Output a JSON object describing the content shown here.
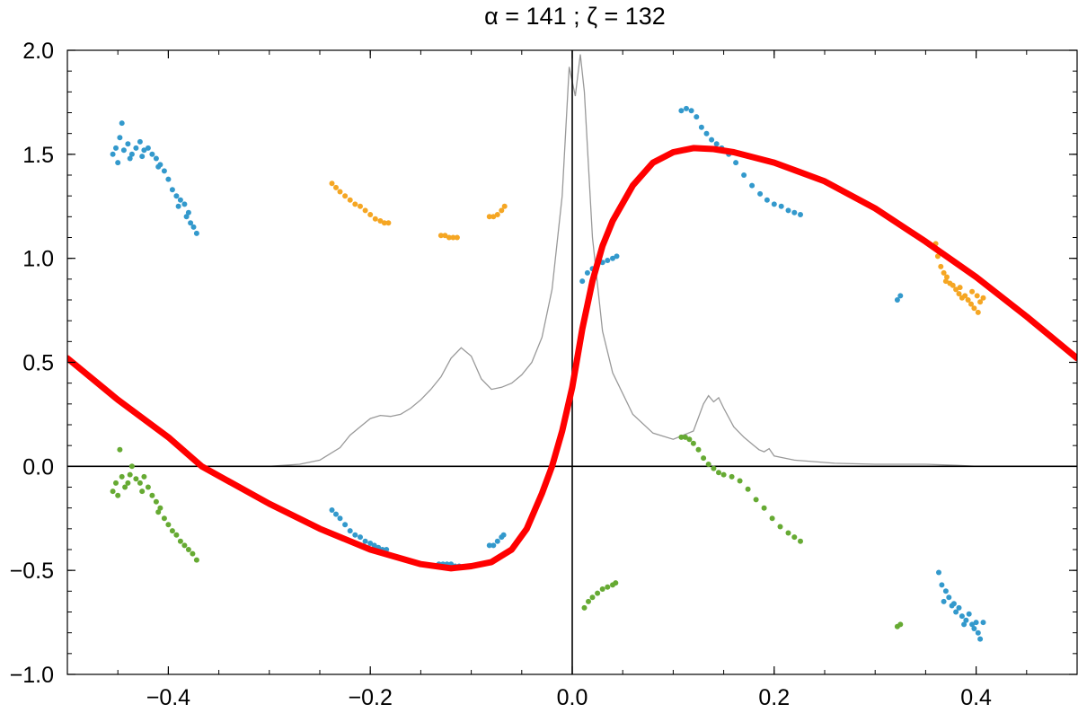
{
  "title": "α = 141 ; ζ = 132",
  "colors": {
    "model": "#ff0000",
    "profile": "#999999",
    "blue": "#3399cc",
    "orange": "#f5a623",
    "green": "#66aa33",
    "axes": "#000000"
  },
  "chart_data": {
    "type": "scatter",
    "title": "α = 141 ; ζ = 132",
    "xlabel": "",
    "ylabel": "",
    "xlim": [
      -0.5,
      0.5
    ],
    "ylim": [
      -1.0,
      2.0
    ],
    "grid": false,
    "legend": "none",
    "x_ticks": [
      -0.4,
      -0.2,
      0.0,
      0.2,
      0.4
    ],
    "x_tick_labels": [
      "−0.4",
      "−0.2",
      "0.0",
      "0.2",
      "0.4"
    ],
    "y_ticks": [
      -1.0,
      -0.5,
      0.0,
      0.5,
      1.0,
      1.5,
      2.0
    ],
    "y_tick_labels": [
      "−1.0",
      "−0.5",
      "0.0",
      "0.5",
      "1.0",
      "1.5",
      "2.0"
    ],
    "reference_lines": {
      "x": 0.0,
      "y": 0.0
    },
    "model_curve": {
      "color": "#ff0000",
      "points": [
        [
          -0.5,
          0.52
        ],
        [
          -0.45,
          0.32
        ],
        [
          -0.4,
          0.14
        ],
        [
          -0.367,
          0.0
        ],
        [
          -0.3,
          -0.18
        ],
        [
          -0.25,
          -0.3
        ],
        [
          -0.2,
          -0.4
        ],
        [
          -0.15,
          -0.47
        ],
        [
          -0.12,
          -0.49
        ],
        [
          -0.1,
          -0.48
        ],
        [
          -0.08,
          -0.46
        ],
        [
          -0.06,
          -0.4
        ],
        [
          -0.045,
          -0.3
        ],
        [
          -0.03,
          -0.13
        ],
        [
          -0.02,
          0.0
        ],
        [
          -0.01,
          0.17
        ],
        [
          0.0,
          0.38
        ],
        [
          0.005,
          0.52
        ],
        [
          0.01,
          0.66
        ],
        [
          0.02,
          0.89
        ],
        [
          0.03,
          1.06
        ],
        [
          0.04,
          1.18
        ],
        [
          0.06,
          1.35
        ],
        [
          0.08,
          1.46
        ],
        [
          0.1,
          1.51
        ],
        [
          0.12,
          1.53
        ],
        [
          0.14,
          1.525
        ],
        [
          0.16,
          1.51
        ],
        [
          0.2,
          1.46
        ],
        [
          0.25,
          1.37
        ],
        [
          0.3,
          1.24
        ],
        [
          0.35,
          1.08
        ],
        [
          0.4,
          0.91
        ],
        [
          0.45,
          0.72
        ],
        [
          0.5,
          0.52
        ]
      ]
    },
    "profile_curve": {
      "color": "#999999",
      "points": [
        [
          -0.5,
          0.0
        ],
        [
          -0.4,
          0.0
        ],
        [
          -0.3,
          0.0
        ],
        [
          -0.27,
          0.01
        ],
        [
          -0.25,
          0.03
        ],
        [
          -0.23,
          0.09
        ],
        [
          -0.22,
          0.15
        ],
        [
          -0.21,
          0.19
        ],
        [
          -0.2,
          0.23
        ],
        [
          -0.19,
          0.245
        ],
        [
          -0.18,
          0.24
        ],
        [
          -0.17,
          0.25
        ],
        [
          -0.16,
          0.28
        ],
        [
          -0.15,
          0.32
        ],
        [
          -0.14,
          0.37
        ],
        [
          -0.13,
          0.43
        ],
        [
          -0.12,
          0.52
        ],
        [
          -0.11,
          0.57
        ],
        [
          -0.1,
          0.53
        ],
        [
          -0.09,
          0.42
        ],
        [
          -0.08,
          0.37
        ],
        [
          -0.07,
          0.38
        ],
        [
          -0.06,
          0.4
        ],
        [
          -0.05,
          0.44
        ],
        [
          -0.04,
          0.5
        ],
        [
          -0.03,
          0.62
        ],
        [
          -0.02,
          0.85
        ],
        [
          -0.01,
          1.3
        ],
        [
          -0.003,
          1.92
        ],
        [
          0.003,
          1.78
        ],
        [
          0.008,
          1.98
        ],
        [
          0.012,
          1.8
        ],
        [
          0.02,
          1.1
        ],
        [
          0.03,
          0.65
        ],
        [
          0.04,
          0.45
        ],
        [
          0.06,
          0.25
        ],
        [
          0.08,
          0.16
        ],
        [
          0.1,
          0.13
        ],
        [
          0.12,
          0.17
        ],
        [
          0.13,
          0.3
        ],
        [
          0.135,
          0.34
        ],
        [
          0.14,
          0.31
        ],
        [
          0.145,
          0.33
        ],
        [
          0.15,
          0.28
        ],
        [
          0.16,
          0.19
        ],
        [
          0.17,
          0.14
        ],
        [
          0.18,
          0.1
        ],
        [
          0.185,
          0.08
        ],
        [
          0.19,
          0.07
        ],
        [
          0.195,
          0.085
        ],
        [
          0.2,
          0.05
        ],
        [
          0.22,
          0.03
        ],
        [
          0.26,
          0.015
        ],
        [
          0.3,
          0.01
        ],
        [
          0.32,
          0.01
        ],
        [
          0.35,
          0.01
        ],
        [
          0.38,
          0.005
        ],
        [
          0.4,
          0.0
        ],
        [
          0.5,
          0.0
        ]
      ]
    },
    "series": [
      {
        "color": "#3399cc",
        "points": [
          [
            -0.455,
            1.5
          ],
          [
            -0.452,
            1.53
          ],
          [
            -0.448,
            1.58
          ],
          [
            -0.446,
            1.65
          ],
          [
            -0.444,
            1.52
          ],
          [
            -0.44,
            1.55
          ],
          [
            -0.436,
            1.5
          ],
          [
            -0.432,
            1.53
          ],
          [
            -0.428,
            1.56
          ],
          [
            -0.424,
            1.52
          ],
          [
            -0.42,
            1.53
          ],
          [
            -0.416,
            1.5
          ],
          [
            -0.412,
            1.48
          ],
          [
            -0.408,
            1.45
          ],
          [
            -0.404,
            1.42
          ],
          [
            -0.4,
            1.38
          ],
          [
            -0.396,
            1.33
          ],
          [
            -0.392,
            1.3
          ],
          [
            -0.388,
            1.28
          ],
          [
            -0.384,
            1.26
          ],
          [
            -0.382,
            1.2
          ],
          [
            -0.38,
            1.22
          ],
          [
            -0.378,
            1.17
          ],
          [
            -0.375,
            1.15
          ],
          [
            -0.372,
            1.12
          ],
          [
            -0.45,
            1.46
          ],
          [
            -0.438,
            1.48
          ],
          [
            -0.426,
            1.49
          ],
          [
            -0.41,
            1.44
          ],
          [
            -0.39,
            1.25
          ]
        ]
      },
      {
        "color": "#3399cc",
        "points": [
          [
            0.108,
            1.71
          ],
          [
            0.113,
            1.72
          ],
          [
            0.118,
            1.71
          ],
          [
            0.123,
            1.68
          ],
          [
            0.128,
            1.63
          ],
          [
            0.133,
            1.6
          ],
          [
            0.138,
            1.57
          ],
          [
            0.143,
            1.55
          ],
          [
            0.148,
            1.53
          ],
          [
            0.155,
            1.5
          ],
          [
            0.162,
            1.46
          ],
          [
            0.17,
            1.4
          ],
          [
            0.178,
            1.35
          ],
          [
            0.186,
            1.31
          ],
          [
            0.193,
            1.28
          ],
          [
            0.2,
            1.26
          ],
          [
            0.207,
            1.25
          ],
          [
            0.214,
            1.23
          ],
          [
            0.22,
            1.22
          ],
          [
            0.226,
            1.21
          ]
        ]
      },
      {
        "color": "#3399cc",
        "points": [
          [
            0.01,
            0.89
          ],
          [
            0.015,
            0.93
          ],
          [
            0.02,
            0.95
          ],
          [
            0.025,
            0.97
          ],
          [
            0.03,
            0.98
          ],
          [
            0.035,
            0.99
          ],
          [
            0.04,
            1.0
          ],
          [
            0.044,
            1.01
          ]
        ]
      },
      {
        "color": "#3399cc",
        "points": [
          [
            -0.238,
            -0.21
          ],
          [
            -0.234,
            -0.23
          ],
          [
            -0.23,
            -0.25
          ],
          [
            -0.225,
            -0.28
          ],
          [
            -0.22,
            -0.31
          ],
          [
            -0.215,
            -0.33
          ],
          [
            -0.21,
            -0.34
          ],
          [
            -0.205,
            -0.36
          ],
          [
            -0.2,
            -0.37
          ],
          [
            -0.196,
            -0.38
          ],
          [
            -0.192,
            -0.39
          ],
          [
            -0.188,
            -0.4
          ],
          [
            -0.184,
            -0.4
          ]
        ]
      },
      {
        "color": "#3399cc",
        "points": [
          [
            -0.132,
            -0.47
          ],
          [
            -0.128,
            -0.47
          ],
          [
            -0.124,
            -0.47
          ],
          [
            -0.12,
            -0.47
          ],
          [
            -0.116,
            -0.48
          ],
          [
            -0.112,
            -0.48
          ]
        ]
      },
      {
        "color": "#3399cc",
        "points": [
          [
            -0.082,
            -0.38
          ],
          [
            -0.078,
            -0.38
          ],
          [
            -0.074,
            -0.36
          ],
          [
            -0.07,
            -0.34
          ],
          [
            -0.068,
            -0.33
          ]
        ]
      },
      {
        "color": "#3399cc",
        "points": [
          [
            0.322,
            0.8
          ],
          [
            0.325,
            0.82
          ]
        ]
      },
      {
        "color": "#3399cc",
        "points": [
          [
            0.363,
            -0.51
          ],
          [
            0.366,
            -0.57
          ],
          [
            0.37,
            -0.6
          ],
          [
            0.373,
            -0.63
          ],
          [
            0.376,
            -0.67
          ],
          [
            0.38,
            -0.7
          ],
          [
            0.383,
            -0.68
          ],
          [
            0.386,
            -0.72
          ],
          [
            0.39,
            -0.74
          ],
          [
            0.393,
            -0.71
          ],
          [
            0.396,
            -0.76
          ],
          [
            0.4,
            -0.75
          ],
          [
            0.404,
            -0.83
          ],
          [
            0.407,
            -0.75
          ],
          [
            0.368,
            -0.65
          ],
          [
            0.378,
            -0.66
          ],
          [
            0.388,
            -0.76
          ],
          [
            0.398,
            -0.78
          ],
          [
            0.402,
            -0.8
          ]
        ]
      },
      {
        "color": "#f5a623",
        "points": [
          [
            -0.238,
            1.36
          ],
          [
            -0.234,
            1.34
          ],
          [
            -0.23,
            1.32
          ],
          [
            -0.225,
            1.3
          ],
          [
            -0.22,
            1.28
          ],
          [
            -0.215,
            1.26
          ],
          [
            -0.21,
            1.25
          ],
          [
            -0.205,
            1.23
          ],
          [
            -0.2,
            1.21
          ],
          [
            -0.195,
            1.19
          ],
          [
            -0.19,
            1.18
          ],
          [
            -0.186,
            1.17
          ],
          [
            -0.182,
            1.17
          ]
        ]
      },
      {
        "color": "#f5a623",
        "points": [
          [
            -0.13,
            1.11
          ],
          [
            -0.126,
            1.11
          ],
          [
            -0.122,
            1.1
          ],
          [
            -0.118,
            1.1
          ],
          [
            -0.114,
            1.1
          ]
        ]
      },
      {
        "color": "#f5a623",
        "points": [
          [
            -0.082,
            1.2
          ],
          [
            -0.078,
            1.2
          ],
          [
            -0.074,
            1.21
          ],
          [
            -0.07,
            1.23
          ],
          [
            -0.067,
            1.25
          ]
        ]
      },
      {
        "color": "#f5a623",
        "points": [
          [
            0.36,
            1.07
          ],
          [
            0.362,
            1.01
          ],
          [
            0.365,
            0.96
          ],
          [
            0.368,
            0.93
          ],
          [
            0.371,
            0.91
          ],
          [
            0.374,
            0.88
          ],
          [
            0.377,
            0.87
          ],
          [
            0.38,
            0.85
          ],
          [
            0.383,
            0.83
          ],
          [
            0.386,
            0.81
          ],
          [
            0.389,
            0.82
          ],
          [
            0.392,
            0.8
          ],
          [
            0.395,
            0.78
          ],
          [
            0.398,
            0.76
          ],
          [
            0.401,
            0.82
          ],
          [
            0.404,
            0.79
          ],
          [
            0.407,
            0.81
          ],
          [
            0.37,
            0.89
          ],
          [
            0.384,
            0.86
          ],
          [
            0.396,
            0.84
          ],
          [
            0.402,
            0.74
          ]
        ]
      },
      {
        "color": "#66aa33",
        "points": [
          [
            -0.455,
            -0.12
          ],
          [
            -0.452,
            -0.08
          ],
          [
            -0.448,
            0.08
          ],
          [
            -0.446,
            -0.05
          ],
          [
            -0.443,
            -0.1
          ],
          [
            -0.44,
            -0.08
          ],
          [
            -0.436,
            0.0
          ],
          [
            -0.432,
            -0.06
          ],
          [
            -0.428,
            -0.08
          ],
          [
            -0.424,
            -0.05
          ],
          [
            -0.42,
            -0.1
          ],
          [
            -0.416,
            -0.14
          ],
          [
            -0.412,
            -0.17
          ],
          [
            -0.408,
            -0.2
          ],
          [
            -0.404,
            -0.25
          ],
          [
            -0.4,
            -0.28
          ],
          [
            -0.396,
            -0.31
          ],
          [
            -0.392,
            -0.33
          ],
          [
            -0.388,
            -0.36
          ],
          [
            -0.384,
            -0.38
          ],
          [
            -0.38,
            -0.4
          ],
          [
            -0.376,
            -0.42
          ],
          [
            -0.372,
            -0.45
          ],
          [
            -0.45,
            -0.14
          ],
          [
            -0.438,
            -0.04
          ],
          [
            -0.426,
            -0.12
          ],
          [
            -0.41,
            -0.22
          ]
        ]
      },
      {
        "color": "#66aa33",
        "points": [
          [
            0.108,
            0.14
          ],
          [
            0.112,
            0.14
          ],
          [
            0.116,
            0.13
          ],
          [
            0.12,
            0.11
          ],
          [
            0.125,
            0.08
          ],
          [
            0.13,
            0.04
          ],
          [
            0.135,
            0.01
          ],
          [
            0.14,
            -0.01
          ],
          [
            0.145,
            -0.03
          ],
          [
            0.15,
            -0.04
          ],
          [
            0.158,
            -0.05
          ],
          [
            0.166,
            -0.07
          ],
          [
            0.174,
            -0.11
          ],
          [
            0.182,
            -0.16
          ],
          [
            0.19,
            -0.2
          ],
          [
            0.198,
            -0.25
          ],
          [
            0.206,
            -0.29
          ],
          [
            0.214,
            -0.32
          ],
          [
            0.22,
            -0.34
          ],
          [
            0.226,
            -0.36
          ]
        ]
      },
      {
        "color": "#66aa33",
        "points": [
          [
            0.012,
            -0.68
          ],
          [
            0.016,
            -0.65
          ],
          [
            0.02,
            -0.63
          ],
          [
            0.025,
            -0.61
          ],
          [
            0.03,
            -0.59
          ],
          [
            0.035,
            -0.58
          ],
          [
            0.04,
            -0.57
          ],
          [
            0.043,
            -0.56
          ]
        ]
      },
      {
        "color": "#66aa33",
        "points": [
          [
            0.322,
            -0.77
          ],
          [
            0.325,
            -0.76
          ]
        ]
      }
    ]
  }
}
